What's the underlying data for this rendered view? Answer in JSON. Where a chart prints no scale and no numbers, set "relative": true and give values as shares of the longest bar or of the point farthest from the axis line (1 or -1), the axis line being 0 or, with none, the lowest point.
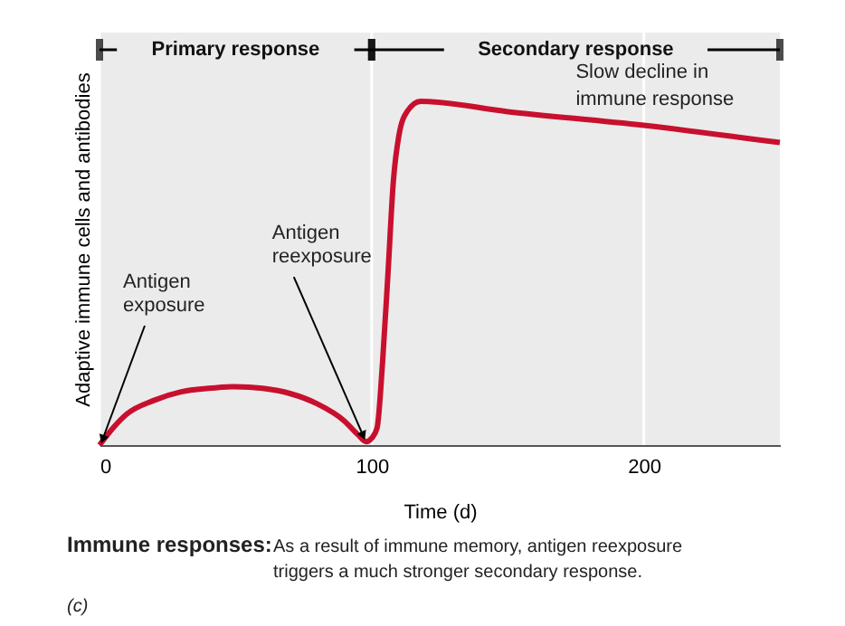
{
  "chart_data": {
    "type": "line",
    "relative": true,
    "xlabel": "Time (d)",
    "ylabel": "Adaptive immune cells and antibodies",
    "x": [
      0,
      5,
      10,
      20,
      30,
      40,
      50,
      60,
      70,
      80,
      90,
      95,
      98,
      100,
      102,
      104,
      106,
      108,
      110,
      113,
      118,
      150,
      200,
      250
    ],
    "series": [
      {
        "color": "#c8102e",
        "values": [
          0,
          0.05,
          0.09,
          0.13,
          0.155,
          0.165,
          0.17,
          0.165,
          0.15,
          0.12,
          0.07,
          0.03,
          0.01,
          0.02,
          0.05,
          0.24,
          0.5,
          0.77,
          0.9,
          0.97,
          1.0,
          0.97,
          0.93,
          0.88
        ]
      }
    ],
    "xlim": [
      0,
      250
    ],
    "xticks": [
      0,
      100,
      200
    ],
    "grid": "x",
    "marker": "none",
    "line_style": "solid",
    "bands": [
      {
        "axis": "x",
        "from": 0,
        "to": 100,
        "label": "Primary response",
        "color": "#ebebeb"
      },
      {
        "axis": "x",
        "from": 100,
        "to": 250,
        "label": "Secondary response",
        "color": "#ebebeb"
      }
    ],
    "annotations": [
      {
        "text": "Antigen exposure",
        "x": 0,
        "y": 0
      },
      {
        "text": "Antigen reexposure",
        "x": 98,
        "y": 0.01
      },
      "Slow decline in immune response",
      "Immune responses:",
      "As a result of immune memory, antigen reexposure triggers a much stronger secondary response.",
      "(c)"
    ]
  }
}
